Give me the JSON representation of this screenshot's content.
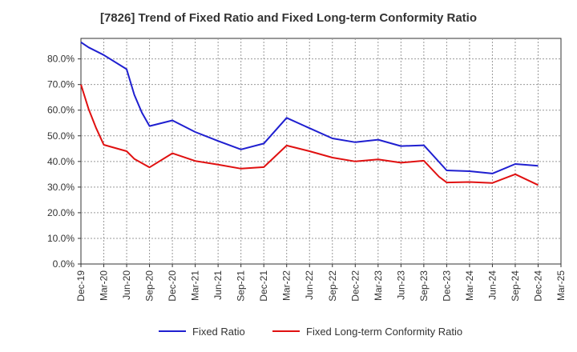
{
  "chart_data": {
    "type": "line",
    "title": "[7826]  Trend of Fixed Ratio and Fixed Long-term Conformity Ratio",
    "xlabel": "",
    "ylabel": "",
    "x_ticks": [
      "Dec-19",
      "Mar-20",
      "Jun-20",
      "Sep-20",
      "Dec-20",
      "Mar-21",
      "Jun-21",
      "Sep-21",
      "Dec-21",
      "Mar-22",
      "Jun-22",
      "Sep-22",
      "Dec-22",
      "Mar-23",
      "Jun-23",
      "Sep-23",
      "Dec-23",
      "Mar-24",
      "Jun-24",
      "Sep-24",
      "Dec-24",
      "Mar-25"
    ],
    "y_ticks": [
      "0.0%",
      "10.0%",
      "20.0%",
      "30.0%",
      "40.0%",
      "50.0%",
      "60.0%",
      "70.0%",
      "80.0%"
    ],
    "ylim": [
      0,
      88
    ],
    "grid": true,
    "legend_position": "bottom",
    "colors": {
      "fixed_ratio": "#1f1fd0",
      "conformity": "#e01010",
      "grid": "#999999",
      "axis": "#333333"
    },
    "series": [
      {
        "name": "Fixed Ratio",
        "color": "#1f1fd0",
        "points": [
          [
            "Dec-19",
            86.5
          ],
          [
            "Jan-20",
            84.5
          ],
          [
            "Mar-20",
            81.5
          ],
          [
            "Jun-20",
            76.0
          ],
          [
            "Jul-20",
            66.0
          ],
          [
            "Aug-20",
            59.0
          ],
          [
            "Sep-20",
            53.8
          ],
          [
            "Dec-20",
            56.0
          ],
          [
            "Mar-21",
            51.5
          ],
          [
            "Jun-21",
            48.0
          ],
          [
            "Sep-21",
            44.7
          ],
          [
            "Dec-21",
            47.0
          ],
          [
            "Mar-22",
            57.0
          ],
          [
            "Jun-22",
            53.0
          ],
          [
            "Sep-22",
            49.0
          ],
          [
            "Dec-22",
            47.5
          ],
          [
            "Mar-23",
            48.5
          ],
          [
            "Jun-23",
            46.0
          ],
          [
            "Sep-23",
            46.3
          ],
          [
            "Dec-23",
            36.5
          ],
          [
            "Mar-24",
            36.2
          ],
          [
            "Jun-24",
            35.3
          ],
          [
            "Sep-24",
            39.0
          ],
          [
            "Dec-24",
            38.3
          ]
        ]
      },
      {
        "name": "Fixed Long-term Conformity Ratio",
        "color": "#e01010",
        "points": [
          [
            "Dec-19",
            70.0
          ],
          [
            "Jan-20",
            60.5
          ],
          [
            "Feb-20",
            53.0
          ],
          [
            "Mar-20",
            46.5
          ],
          [
            "Jun-20",
            44.0
          ],
          [
            "Jul-20",
            41.0
          ],
          [
            "Sep-20",
            37.7
          ],
          [
            "Dec-20",
            43.2
          ],
          [
            "Mar-21",
            40.2
          ],
          [
            "Jun-21",
            38.8
          ],
          [
            "Sep-21",
            37.2
          ],
          [
            "Dec-21",
            37.8
          ],
          [
            "Mar-22",
            46.2
          ],
          [
            "Jun-22",
            44.0
          ],
          [
            "Sep-22",
            41.5
          ],
          [
            "Dec-22",
            40.0
          ],
          [
            "Mar-23",
            40.8
          ],
          [
            "Jun-23",
            39.5
          ],
          [
            "Sep-23",
            40.3
          ],
          [
            "Nov-23",
            34.0
          ],
          [
            "Dec-23",
            31.8
          ],
          [
            "Mar-24",
            32.0
          ],
          [
            "Jun-24",
            31.6
          ],
          [
            "Sep-24",
            35.0
          ],
          [
            "Dec-24",
            30.8
          ]
        ]
      }
    ]
  }
}
